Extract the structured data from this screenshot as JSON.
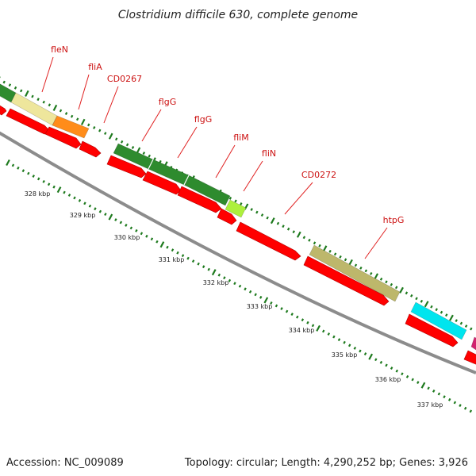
{
  "title": "Clostridium difficile 630, complete genome",
  "footer": {
    "accession": "Accession: NC_009089",
    "summary": "Topology: circular; Length: 4,290,252 bp; Genes: 3,926"
  },
  "colors": {
    "background": "#ffffff",
    "backbone": "#8c8c8c",
    "tick": "#1e7a1e",
    "label_line": "#e02020",
    "label_text": "#cc1111",
    "cds_forward": "#ff0000",
    "kbp_text": "#222222"
  },
  "gene_labels": [
    "fleN",
    "fliA",
    "CD0267",
    "flgG",
    "flgG",
    "fliM",
    "fliN",
    "CD0272",
    "htpG"
  ],
  "kbp_ticks": [
    "328 kbp",
    "329 kbp",
    "330 kbp",
    "331 kbp",
    "332 kbp",
    "333 kbp",
    "334 kbp",
    "335 kbp",
    "336 kbp",
    "337 kbp"
  ],
  "cog_features": [
    {
      "id": "cog-1",
      "color": "#2e8b2e"
    },
    {
      "id": "cog-2",
      "color": "#eee69c"
    },
    {
      "id": "cog-3",
      "color": "#ff8c1a"
    },
    {
      "id": "cog-4",
      "color": "#2e8b2e"
    },
    {
      "id": "cog-5",
      "color": "#2e8b2e"
    },
    {
      "id": "cog-6",
      "color": "#2e8b2e"
    },
    {
      "id": "cog-7",
      "color": "#adf03c"
    },
    {
      "id": "cog-8",
      "color": "#bdb76b"
    },
    {
      "id": "cog-9",
      "color": "#00e5ee"
    },
    {
      "id": "cog-10",
      "color": "#d2226e"
    }
  ]
}
